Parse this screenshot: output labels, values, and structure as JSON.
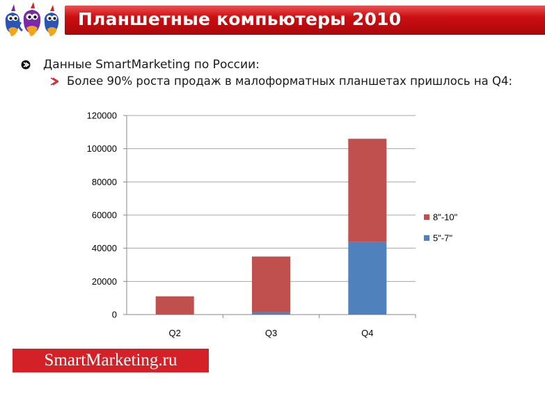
{
  "header": {
    "title": "Планшетные компьютеры 2010"
  },
  "bullets": {
    "level1": "Данные SmartMarketing по России:",
    "level2": "Более 90% роста продаж в малоформатных планшетах пришлось на Q4:"
  },
  "footer": {
    "brand": "SmartMarketing.ru"
  },
  "colors": {
    "header_red": "#c8101a",
    "series_large": "#c0504d",
    "series_small": "#4f81bd"
  },
  "chart_data": {
    "type": "bar",
    "stacked": true,
    "categories": [
      "Q2",
      "Q3",
      "Q4"
    ],
    "series": [
      {
        "name": "5\"-7\"",
        "values": [
          0,
          1500,
          44000
        ],
        "color": "#4f81bd"
      },
      {
        "name": "8\"-10\"",
        "values": [
          11000,
          33500,
          62000
        ],
        "color": "#c0504d"
      }
    ],
    "ylim": [
      0,
      120000
    ],
    "yticks": [
      "0",
      "20000",
      "40000",
      "60000",
      "80000",
      "100000",
      "120000"
    ],
    "grid": true,
    "legend": "right"
  }
}
